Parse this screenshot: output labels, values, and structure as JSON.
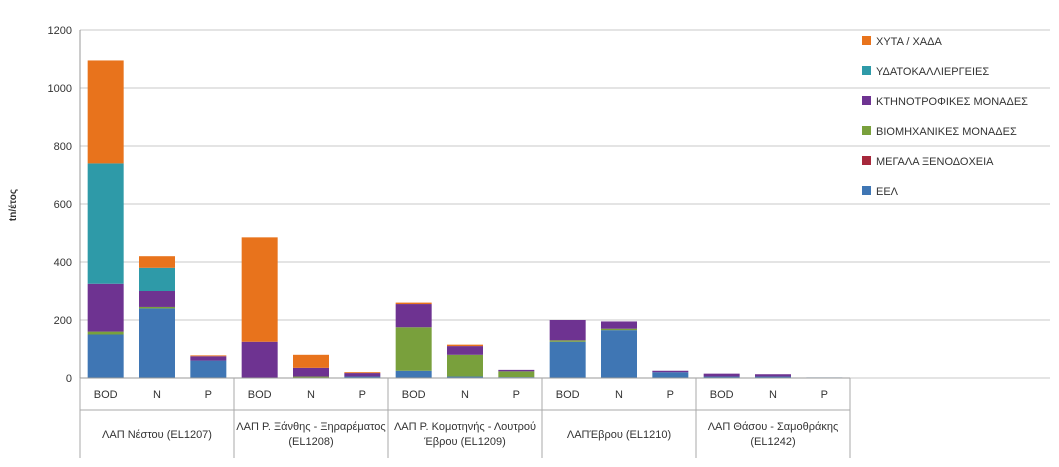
{
  "chart_data": {
    "type": "bar",
    "stacked": true,
    "ylabel": "tn/έτος",
    "xlabel": "",
    "ylim": [
      0,
      1200
    ],
    "yticks": [
      0,
      200,
      400,
      600,
      800,
      1000,
      1200
    ],
    "grid": true,
    "legend_position": "right",
    "groups": [
      {
        "label": "ΛΑΠ Νέστου (EL1207)",
        "categories": [
          "BOD",
          "N",
          "P"
        ]
      },
      {
        "label": "ΛΑΠ Ρ. Ξάνθης - Ξηραρέματος (EL1208)",
        "categories": [
          "BOD",
          "N",
          "P"
        ]
      },
      {
        "label": "ΛΑΠ Ρ. Κομοτηνής - Λουτρού Έβρου (EL1209)",
        "categories": [
          "BOD",
          "N",
          "P"
        ]
      },
      {
        "label": "ΛΑΠΈβρου (EL1210)",
        "categories": [
          "BOD",
          "N",
          "P"
        ]
      },
      {
        "label": "ΛΑΠ Θάσου - Σαμοθράκης (EL1242)",
        "categories": [
          "BOD",
          "N",
          "P"
        ]
      }
    ],
    "series": [
      {
        "name": "ΕΕΛ",
        "color": "#3f76b4",
        "values": [
          150,
          240,
          60,
          0,
          0,
          5,
          25,
          5,
          3,
          125,
          165,
          20,
          5,
          5,
          2
        ]
      },
      {
        "name": "ΜΕΓΑΛΑ ΞΕΝΟΔΟΧΕΙΑ",
        "color": "#a6283b",
        "values": [
          0,
          0,
          0,
          0,
          0,
          0,
          0,
          0,
          0,
          0,
          0,
          0,
          0,
          0,
          0
        ]
      },
      {
        "name": "ΒΙΟΜΗΧΑΝΙΚΕΣ ΜΟΝΑΔΕΣ",
        "color": "#79a03c",
        "values": [
          10,
          5,
          0,
          0,
          5,
          0,
          150,
          75,
          20,
          5,
          5,
          0,
          0,
          0,
          0
        ]
      },
      {
        "name": "ΚΤΗΝΟΤΡΟΦΙΚΕΣ ΜΟΝΑΔΕΣ",
        "color": "#6e3391",
        "values": [
          165,
          55,
          15,
          125,
          30,
          12,
          80,
          30,
          5,
          70,
          25,
          5,
          10,
          8,
          0
        ]
      },
      {
        "name": "ΥΔΑΤΟΚΑΛΛΙΕΡΓΕΙΕΣ",
        "color": "#2e9aa8",
        "values": [
          415,
          80,
          0,
          0,
          0,
          0,
          0,
          0,
          0,
          0,
          0,
          0,
          0,
          0,
          0
        ]
      },
      {
        "name": "ΧΥΤΑ / ΧΑΔΑ",
        "color": "#e8731c",
        "values": [
          355,
          40,
          3,
          360,
          45,
          3,
          5,
          5,
          0,
          0,
          0,
          0,
          0,
          0,
          0
        ]
      }
    ],
    "legend": [
      {
        "name": "ΧΥΤΑ / ΧΑΔΑ",
        "color": "#e8731c"
      },
      {
        "name": "ΥΔΑΤΟΚΑΛΛΙΕΡΓΕΙΕΣ",
        "color": "#2e9aa8"
      },
      {
        "name": "ΚΤΗΝΟΤΡΟΦΙΚΕΣ ΜΟΝΑΔΕΣ",
        "color": "#6e3391"
      },
      {
        "name": "ΒΙΟΜΗΧΑΝΙΚΕΣ ΜΟΝΑΔΕΣ",
        "color": "#79a03c"
      },
      {
        "name": "ΜΕΓΑΛΑ ΞΕΝΟΔΟΧΕΙΑ",
        "color": "#a6283b"
      },
      {
        "name": "ΕΕΛ",
        "color": "#3f76b4"
      }
    ]
  }
}
